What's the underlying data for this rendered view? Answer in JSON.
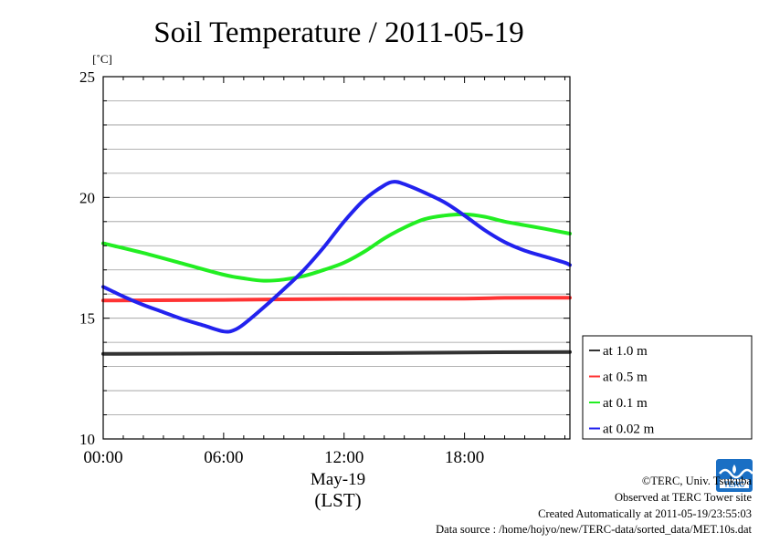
{
  "chart_data": {
    "type": "line",
    "title": "Soil Temperature / 2011-05-19",
    "unit_label": "[˚C]",
    "x_tick_labels": [
      "00:00",
      "06:00",
      "12:00",
      "18:00"
    ],
    "x_ticks_hours": [
      0,
      6,
      12,
      18
    ],
    "x_date_label": "May-19",
    "x_zone_label": "(LST)",
    "xlim_hours": [
      0,
      23.25
    ],
    "ylim": [
      10,
      25
    ],
    "y_tick_labels": [
      "10",
      "15",
      "20",
      "25"
    ],
    "y_ticks": [
      10,
      15,
      20,
      25
    ],
    "y_gridlines": [
      11,
      12,
      13,
      14,
      15,
      16,
      17,
      18,
      19,
      20,
      21,
      22,
      23,
      24
    ],
    "grid": "horizontal",
    "legend_position": "right",
    "series": [
      {
        "name": "at 1.0 m",
        "color": "#333333",
        "x": [
          0,
          6,
          12,
          18,
          23.25
        ],
        "y": [
          13.52,
          13.54,
          13.55,
          13.58,
          13.6
        ]
      },
      {
        "name": "at 0.5 m",
        "color": "#ff3333",
        "x": [
          0,
          6,
          12,
          18,
          20,
          23.25
        ],
        "y": [
          15.73,
          15.76,
          15.8,
          15.81,
          15.84,
          15.85
        ]
      },
      {
        "name": "at 0.1 m",
        "color": "#22ee22",
        "x": [
          0,
          2,
          4,
          6,
          7,
          8,
          9,
          10,
          11,
          12,
          13,
          14,
          15,
          16,
          17,
          18,
          19,
          20,
          21,
          22,
          23.25
        ],
        "y": [
          18.1,
          17.7,
          17.25,
          16.8,
          16.65,
          16.55,
          16.6,
          16.75,
          17.0,
          17.3,
          17.75,
          18.3,
          18.75,
          19.1,
          19.25,
          19.3,
          19.2,
          19.0,
          18.85,
          18.7,
          18.5
        ]
      },
      {
        "name": "at 0.02 m",
        "color": "#2222ee",
        "x": [
          0,
          1,
          2,
          3,
          4,
          5,
          6,
          6.5,
          7,
          8,
          9,
          10,
          11,
          12,
          13,
          14,
          14.5,
          15,
          16,
          17,
          18,
          19,
          20,
          21,
          22,
          23,
          23.25
        ],
        "y": [
          16.3,
          15.9,
          15.55,
          15.25,
          14.95,
          14.7,
          14.45,
          14.5,
          14.75,
          15.45,
          16.2,
          17.0,
          17.95,
          19.0,
          19.9,
          20.5,
          20.65,
          20.55,
          20.2,
          19.8,
          19.25,
          18.65,
          18.15,
          17.8,
          17.55,
          17.3,
          17.2
        ]
      }
    ]
  },
  "credits": {
    "copyright": "©TERC, Univ. Tsukuba",
    "observed": "Observed at TERC Tower site",
    "created": "Created Automatically at 2011-05-19/23:55:03",
    "source": "Data source : /home/hojyo/new/TERC-data/sorted_data/MET.10s.dat"
  },
  "logo": {
    "name": "terc-logo",
    "color": "#1a6fc4",
    "label": "TERC"
  }
}
